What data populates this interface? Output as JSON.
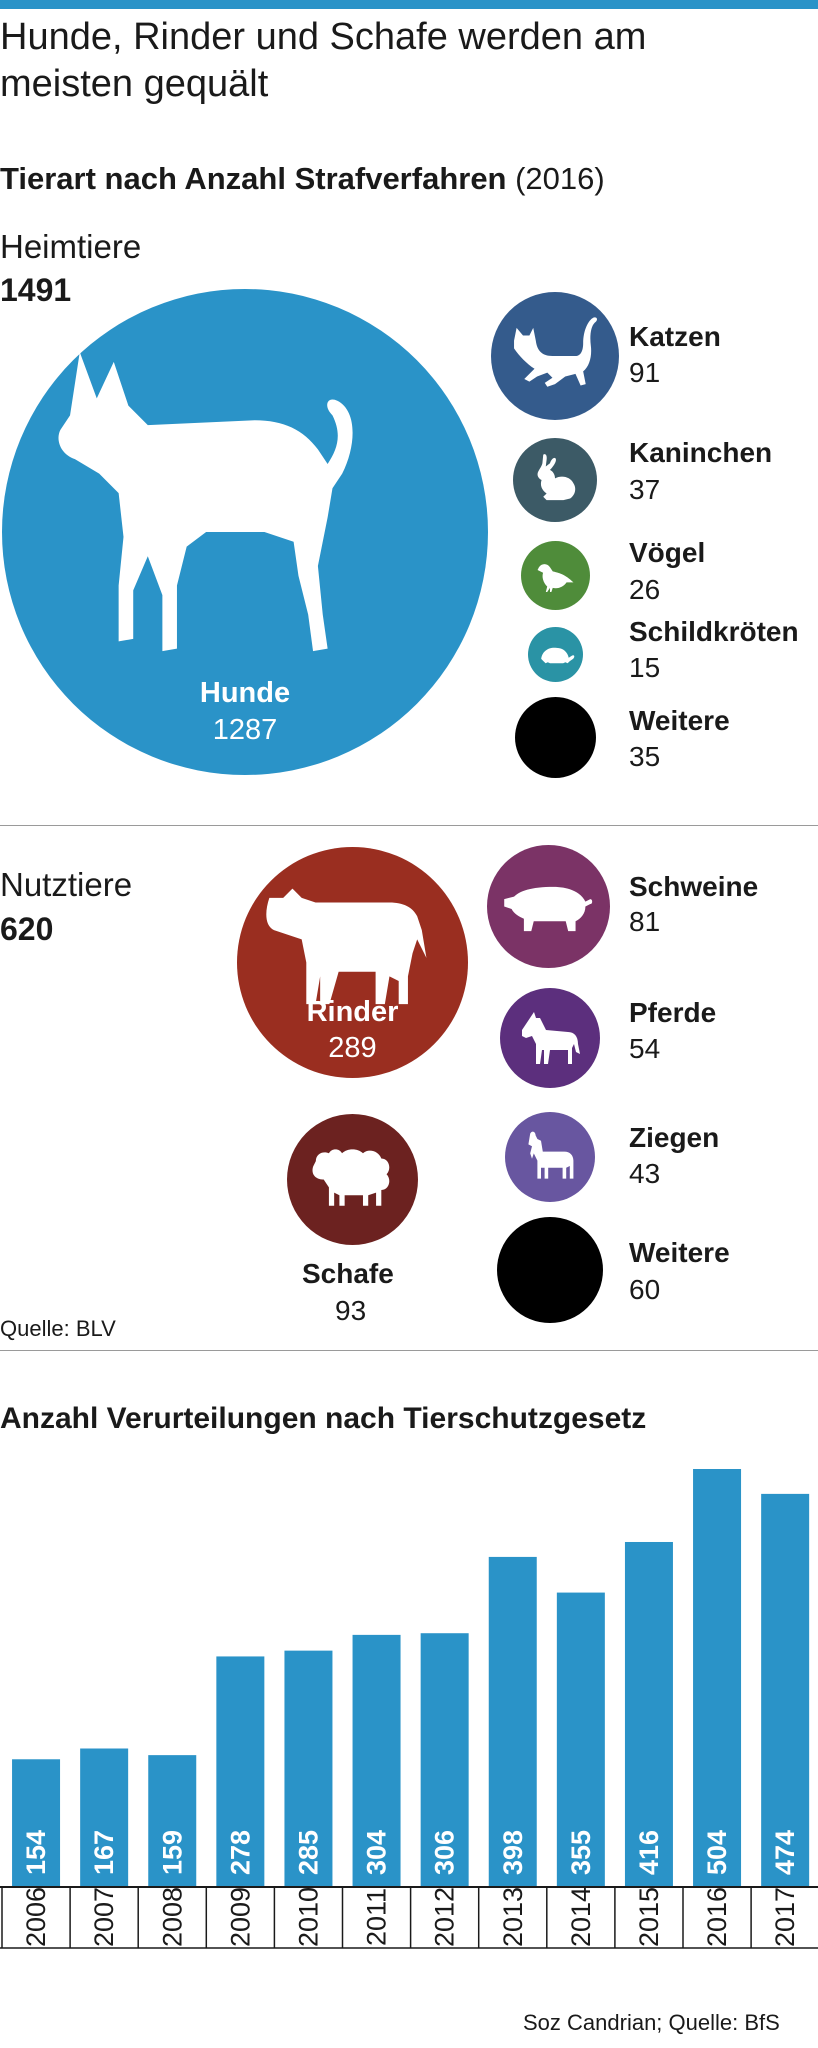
{
  "colors": {
    "accent": "#2a93c8",
    "dogs": "#2a93c8",
    "cats": "#345b8c",
    "rabbits": "#3c5a66",
    "birds": "#4f8c3a",
    "turtles": "#2a93a5",
    "other": "#000000",
    "cattle": "#9a2e20",
    "sheep": "#6c2220",
    "pigs": "#7b3366",
    "horses": "#5c2f7d",
    "goats": "#6856a0",
    "bar": "#2a93c8"
  },
  "headline": "Hunde, Rinder und Schafe werden am meisten gequält",
  "subtitle": {
    "bold": "Tierart nach Anzahl Strafverfahren",
    "rest": " (2016)"
  },
  "pets": {
    "label": "Heimtiere",
    "total": "1491",
    "main": {
      "name": "Hunde",
      "value": "1287",
      "icon": "dog-icon"
    },
    "items": [
      {
        "name": "Katzen",
        "value": "91",
        "icon": "cat-icon"
      },
      {
        "name": "Kaninchen",
        "value": "37",
        "icon": "rabbit-icon"
      },
      {
        "name": "Vögel",
        "value": "26",
        "icon": "bird-icon"
      },
      {
        "name": "Schildkröten",
        "value": "15",
        "icon": "turtle-icon"
      },
      {
        "name": "Weitere",
        "value": "35",
        "icon": ""
      }
    ]
  },
  "livestock": {
    "label": "Nutztiere",
    "total": "620",
    "cattle": {
      "name": "Rinder",
      "value": "289",
      "icon": "cow-icon"
    },
    "sheep": {
      "name": "Schafe",
      "value": "93",
      "icon": "sheep-icon"
    },
    "items": [
      {
        "name": "Schweine",
        "value": "81",
        "icon": "pig-icon"
      },
      {
        "name": "Pferde",
        "value": "54",
        "icon": "horse-icon"
      },
      {
        "name": "Ziegen",
        "value": "43",
        "icon": "goat-icon"
      },
      {
        "name": "Weitere",
        "value": "60",
        "icon": ""
      }
    ]
  },
  "source_top": "Quelle: BLV",
  "source_bottom": "Soz Candrian; Quelle: BfS",
  "chart_data": {
    "type": "bar",
    "title": "Anzahl Verurteilungen nach Tierschutzgesetz",
    "categories": [
      "2006",
      "2007",
      "2008",
      "2009",
      "2010",
      "2011",
      "2012",
      "2013",
      "2014",
      "2015",
      "2016",
      "2017"
    ],
    "values": [
      154,
      167,
      159,
      278,
      285,
      304,
      306,
      398,
      355,
      416,
      504,
      474
    ],
    "ylim": [
      0,
      504
    ],
    "grid": false,
    "data_labels": "inside-bar-vertical"
  }
}
